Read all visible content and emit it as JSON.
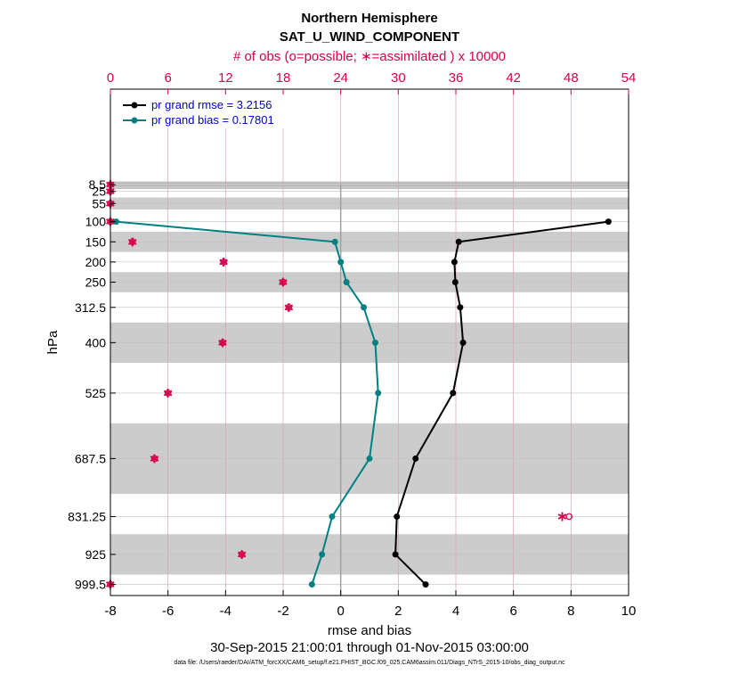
{
  "colors": {
    "rmse": "#000000",
    "bias": "#008080",
    "obs": "#d6004d",
    "obs_grid": "#d8a0b4",
    "band": "#cccccc",
    "legend_text": "#0000cc",
    "zero_line": "#a0a0a0"
  },
  "chart_data": {
    "type": "line",
    "title": "Northern Hemisphere",
    "subtitle": "SAT_U_WIND_COMPONENT",
    "top_axis_label": "# of obs (o=possible; ∗=assimilated ) x 10000",
    "xlabel": "rmse and bias",
    "ylabel": "hPa",
    "date_range": "30-Sep-2015 21:00:01 through 01-Nov-2015 03:00:00",
    "footnote": "data file: /Users/raeder/DAI/ATM_forcXX/CAM6_setup/f.e21.FHIST_BGC.f09_025.CAM6assim.011/Diags_NTrS_2015-10/obs_diag_output.nc",
    "xlim": [
      -8,
      10
    ],
    "x_ticks": [
      -8,
      -6,
      -4,
      -2,
      0,
      2,
      4,
      6,
      8,
      10
    ],
    "x_tick_labels": [
      "-8",
      "-6",
      "-4",
      "-2",
      "0",
      "2",
      "4",
      "6",
      "8",
      "10"
    ],
    "top_xlim": [
      0,
      54
    ],
    "top_ticks": [
      0,
      6,
      12,
      18,
      24,
      30,
      36,
      42,
      48,
      54
    ],
    "top_tick_labels": [
      "0",
      "6",
      "12",
      "18",
      "24",
      "30",
      "36",
      "42",
      "48",
      "54"
    ],
    "levels": [
      8.5,
      25,
      55,
      100,
      150,
      200,
      250,
      312.5,
      400,
      525,
      687.5,
      831.25,
      925,
      999.5
    ],
    "level_labels": [
      "8.5",
      "25",
      "55",
      "100",
      "150",
      "200",
      "250",
      "312.5",
      "400",
      "525",
      "687.5",
      "831.25",
      "925",
      "999.5"
    ],
    "shaded_bands": [
      [
        0,
        17
      ],
      [
        40,
        70
      ],
      [
        125,
        175
      ],
      [
        225,
        275
      ],
      [
        350,
        450
      ],
      [
        600,
        775
      ],
      [
        875,
        975
      ]
    ],
    "series": [
      {
        "name": "rmse",
        "legend": "pr grand rmse = 3.2156",
        "levels": [
          100,
          150,
          200,
          250,
          312.5,
          400,
          525,
          687.5,
          831.25,
          925,
          999.5
        ],
        "values": [
          9.3,
          4.1,
          3.95,
          3.98,
          4.15,
          4.25,
          3.9,
          2.6,
          1.95,
          1.9,
          2.95
        ]
      },
      {
        "name": "bias",
        "legend": "pr grand bias = 0.17801",
        "levels": [
          100,
          150,
          200,
          250,
          312.5,
          400,
          525,
          687.5,
          831.25,
          925,
          999.5
        ],
        "values": [
          -7.8,
          -0.2,
          0.0,
          0.2,
          0.8,
          1.2,
          1.3,
          1.0,
          -0.3,
          -0.65,
          -1.0
        ]
      }
    ],
    "obs_counts": {
      "levels": [
        8.5,
        25,
        55,
        100,
        150,
        200,
        250,
        312.5,
        400,
        525,
        687.5,
        831.25,
        925,
        999.5
      ],
      "possible": [
        0,
        0,
        0,
        0,
        2.3,
        11.8,
        18.0,
        18.6,
        11.7,
        6.0,
        4.6,
        47.8,
        13.7,
        0
      ],
      "assimilated": [
        0,
        0,
        0,
        0,
        2.3,
        11.8,
        18.0,
        18.6,
        11.7,
        6.0,
        4.6,
        47.1,
        13.7,
        0
      ]
    }
  }
}
